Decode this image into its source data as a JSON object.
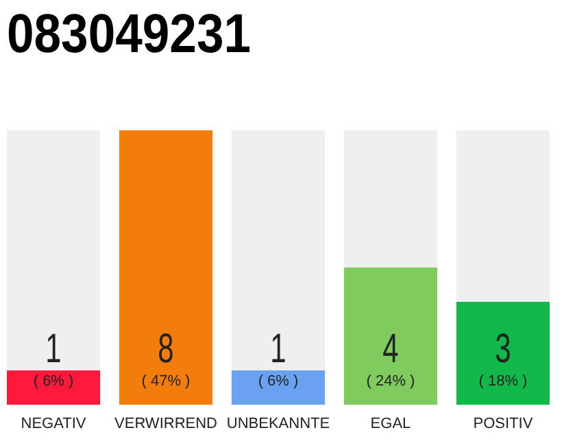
{
  "chart_data": {
    "type": "bar",
    "title": "083049231",
    "categories": [
      "NEGATIV",
      "VERWIRREND",
      "UNBEKANNTE",
      "EGAL",
      "POSITIV"
    ],
    "values": [
      1,
      8,
      1,
      4,
      3
    ],
    "colors": [
      "#ff1a3c",
      "#f27d0c",
      "#6aa1f0",
      "#7fcb5e",
      "#12b84a"
    ],
    "data_labels": true,
    "annotations": [
      "( 6% )",
      "( 47% )",
      "( 6% )",
      "( 24% )",
      "( 18% )"
    ]
  }
}
